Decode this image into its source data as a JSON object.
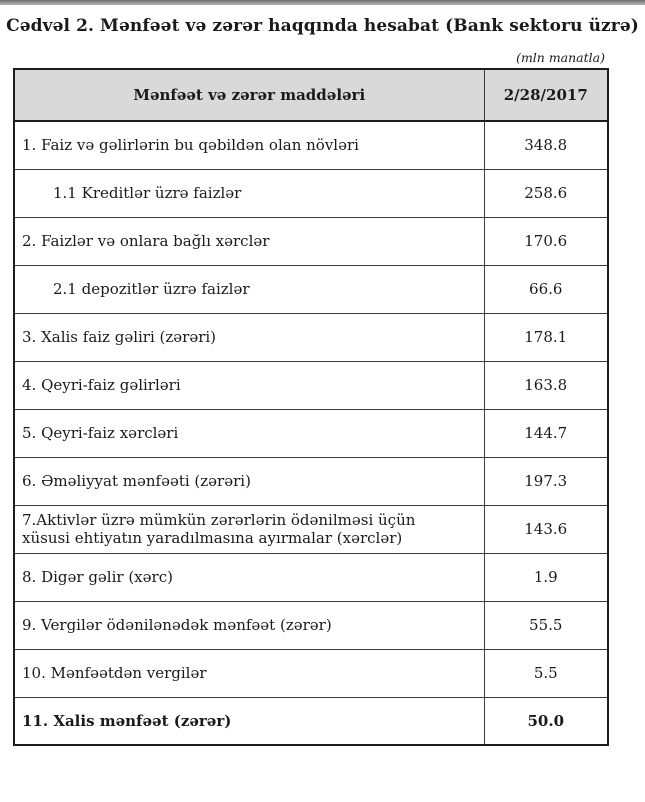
{
  "page": {
    "title": "Cədvəl 2. Mənfəət və zərər haqqında hesabat (Bank sektoru üzrə)",
    "unit_note": "(mln manatla)"
  },
  "table": {
    "columns": [
      "Mənfəət və zərər maddələri",
      "2/28/2017"
    ],
    "rows": [
      {
        "label": "1. Faiz və gəlirlərin bu qəbildən olan növləri",
        "value": "348.8",
        "indent": false,
        "bold": false,
        "tall": false
      },
      {
        "label": "1.1 Kreditlər üzrə faizlər",
        "value": "258.6",
        "indent": true,
        "bold": false,
        "tall": false
      },
      {
        "label": "2. Faizlər və onlara bağlı xərclər",
        "value": "170.6",
        "indent": false,
        "bold": false,
        "tall": false
      },
      {
        "label": "2.1 depozitlər üzrə faizlər",
        "value": "66.6",
        "indent": true,
        "bold": false,
        "tall": false
      },
      {
        "label": "3. Xalis faiz gəliri (zərəri)",
        "value": "178.1",
        "indent": false,
        "bold": false,
        "tall": false
      },
      {
        "label": "4. Qeyri-faiz gəlirləri",
        "value": "163.8",
        "indent": false,
        "bold": false,
        "tall": false
      },
      {
        "label": "5. Qeyri-faiz xərcləri",
        "value": "144.7",
        "indent": false,
        "bold": false,
        "tall": false
      },
      {
        "label": "6. Əməliyyat mənfəəti (zərəri)",
        "value": "197.3",
        "indent": false,
        "bold": false,
        "tall": false
      },
      {
        "label": "7.Aktivlər üzrə mümkün zərərlərin ödənilməsi üçün xüsusi ehtiyatın yaradılmasına ayırmalar (xərclər)",
        "value": "143.6",
        "indent": false,
        "bold": false,
        "tall": true
      },
      {
        "label": "8. Digər gəlir (xərc)",
        "value": "1.9",
        "indent": false,
        "bold": false,
        "tall": false
      },
      {
        "label": "9. Vergilər ödənilənədək mənfəət (zərər)",
        "value": "55.5",
        "indent": false,
        "bold": false,
        "tall": false
      },
      {
        "label": "10. Mənfəətdən vergilər",
        "value": "5.5",
        "indent": false,
        "bold": false,
        "tall": false
      },
      {
        "label": "11. Xalis mənfəət (zərər)",
        "value": "50.0",
        "indent": false,
        "bold": true,
        "tall": false
      }
    ]
  },
  "colors": {
    "header_bg": "#d9d9d9",
    "outer_border": "#1c1c1c",
    "inner_border": "#3a3a3a",
    "top_bar": "#8c8c8c"
  }
}
